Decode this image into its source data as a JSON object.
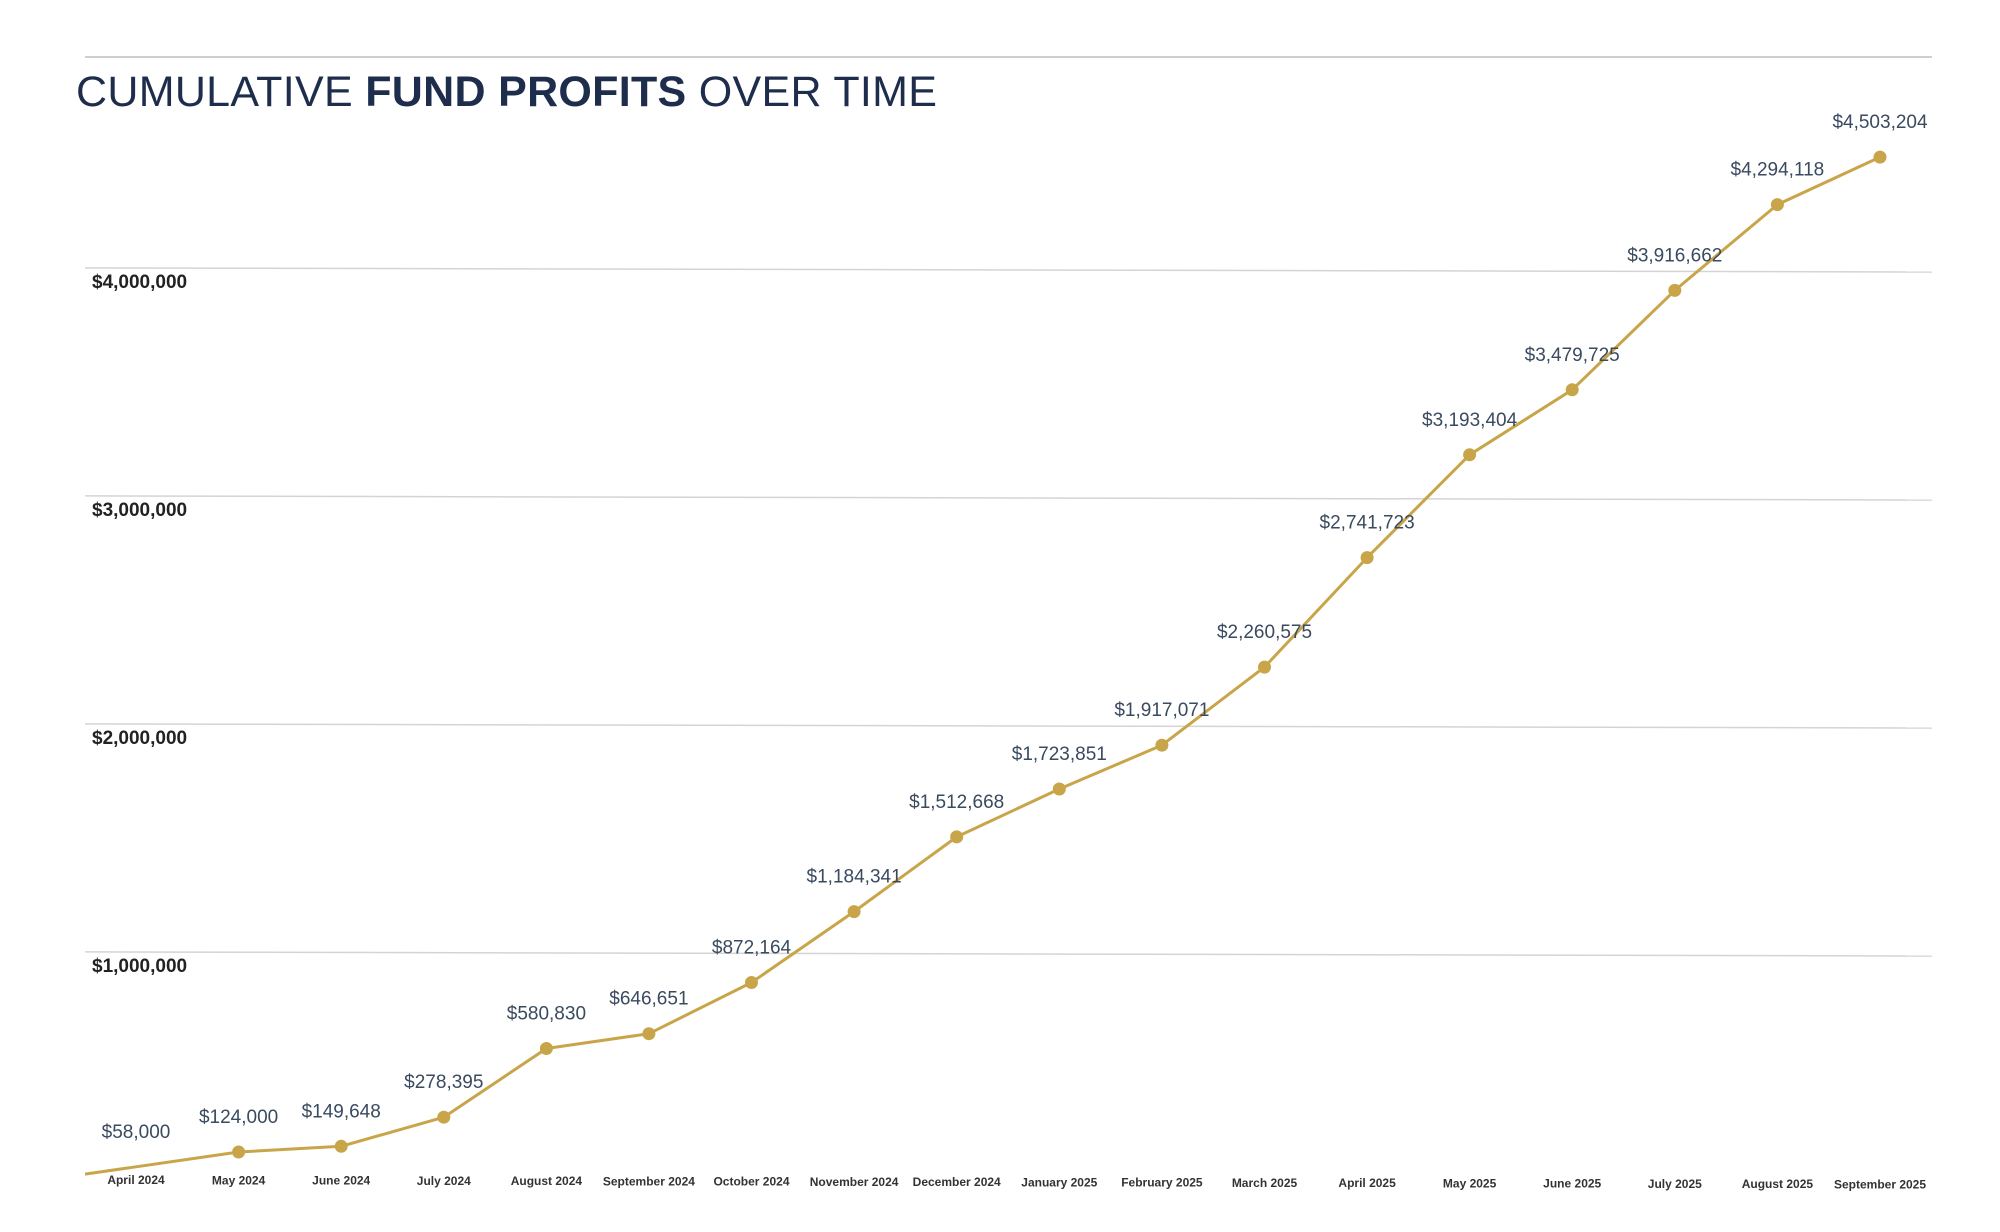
{
  "chart_data": {
    "type": "line",
    "title_prefix": "CUMULATIVE ",
    "title_bold": "FUND PROFITS",
    "title_suffix": " OVER TIME",
    "xlabel": "",
    "ylabel": "",
    "ylim": [
      0,
      4700000
    ],
    "yticks": [
      1000000,
      2000000,
      3000000,
      4000000
    ],
    "ytick_labels": [
      "$1,000,000",
      "$2,000,000",
      "$3,000,000",
      "$4,000,000"
    ],
    "grid": true,
    "legend": "none",
    "line_color": "#c9a54a",
    "grid_color": "#d4d4d4",
    "categories": [
      "April 2024",
      "May 2024",
      "June 2024",
      "July 2024",
      "August 2024",
      "September 2024",
      "October 2024",
      "November 2024",
      "December 2024",
      "January 2025",
      "February 2025",
      "March 2025",
      "April 2025",
      "May 2025",
      "June 2025",
      "July 2025",
      "August 2025",
      "September 2025"
    ],
    "values": [
      58000,
      124000,
      149648,
      278395,
      580830,
      646651,
      872164,
      1184341,
      1512668,
      1723851,
      1917071,
      2260575,
      2741723,
      3193404,
      3479725,
      3916662,
      4294118,
      4503204
    ],
    "data_labels": [
      "$58,000",
      "$124,000",
      "$149,648",
      "$278,395",
      "$580,830",
      "$646,651",
      "$872,164",
      "$1,184,341",
      "$1,512,668",
      "$1,723,851",
      "$1,917,071",
      "$2,260,575",
      "$2,741,723",
      "$3,193,404",
      "$3,479,725",
      "$3,916,662",
      "$4,294,118",
      "$4,503,204"
    ]
  }
}
